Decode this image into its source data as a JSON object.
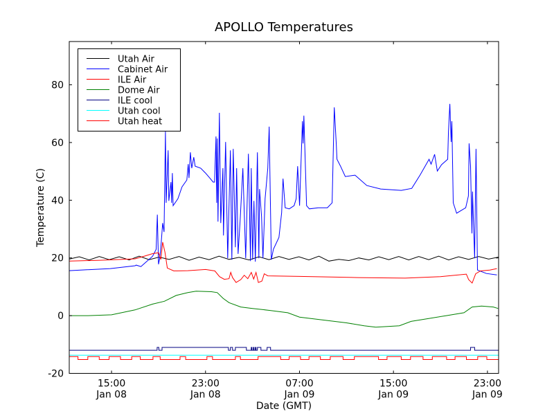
{
  "chart_data": {
    "type": "line",
    "title": "APOLLO Temperatures",
    "xlabel": "Date (GMT)",
    "ylabel": "Temperature (C)",
    "x_unit": "hours since Jan 08 00:00 GMT",
    "xlim": [
      11.4,
      47.95
    ],
    "ylim": [
      -20,
      95
    ],
    "grid": false,
    "legend_position": "top-left",
    "yticks": [
      -20,
      0,
      20,
      40,
      60,
      80
    ],
    "ytick_labels": [
      "-20",
      "0",
      "20",
      "40",
      "60",
      "80"
    ],
    "xticks": [
      {
        "value": 15,
        "time": "15:00",
        "date": "Jan 08"
      },
      {
        "value": 23,
        "time": "23:00",
        "date": "Jan 08"
      },
      {
        "value": 31,
        "time": "07:00",
        "date": "Jan 09"
      },
      {
        "value": 39,
        "time": "15:00",
        "date": "Jan 09"
      },
      {
        "value": 47,
        "time": "23:00",
        "date": "Jan 09"
      }
    ],
    "series": [
      {
        "name": "Utah Air",
        "color": "#000000",
        "x_start": 11.4,
        "x_step": 0.85,
        "values": [
          19.6,
          20.4,
          19.3,
          20.5,
          19.4,
          20.4,
          19.3,
          20.6,
          19.4,
          20.3,
          19.5,
          20.5,
          19.2,
          20.3,
          19.4,
          20.6,
          19.5,
          20.2,
          19.3,
          20.4,
          19.4,
          20.5,
          19.5,
          20.4,
          19.3,
          20.6,
          18.9,
          19.5,
          19.1,
          20.0,
          19.3,
          20.4,
          19.4,
          20.5,
          19.3,
          20.5,
          19.4,
          20.6,
          19.3,
          20.4,
          19.5,
          20.5,
          19.6,
          20.3
        ]
      },
      {
        "name": "Cabinet Air",
        "color": "#0000ff",
        "points": [
          [
            11.4,
            15.6
          ],
          [
            14.9,
            16.3
          ],
          [
            17.0,
            17.3
          ],
          [
            17.1,
            17.5
          ],
          [
            17.5,
            17.0
          ],
          [
            18.5,
            20.6
          ],
          [
            18.8,
            23.0
          ],
          [
            18.9,
            35.0
          ],
          [
            19.0,
            17.8
          ],
          [
            19.1,
            19.9
          ],
          [
            19.2,
            23.7
          ],
          [
            19.35,
            32.1
          ],
          [
            19.47,
            29.0
          ],
          [
            19.59,
            63.8
          ],
          [
            19.65,
            39.1
          ],
          [
            19.82,
            57.3
          ],
          [
            19.88,
            39.8
          ],
          [
            20.06,
            46.3
          ],
          [
            20.12,
            39.1
          ],
          [
            20.18,
            49.4
          ],
          [
            20.24,
            38.1
          ],
          [
            20.65,
            40.5
          ],
          [
            21.0,
            44.6
          ],
          [
            21.41,
            47.0
          ],
          [
            21.53,
            52.5
          ],
          [
            21.59,
            47.7
          ],
          [
            21.71,
            56.6
          ],
          [
            21.83,
            51.1
          ],
          [
            22.0,
            54.9
          ],
          [
            22.12,
            51.8
          ],
          [
            22.59,
            51.1
          ],
          [
            23.0,
            49.4
          ],
          [
            23.36,
            47.7
          ],
          [
            23.65,
            46.3
          ],
          [
            23.77,
            46.3
          ],
          [
            23.89,
            62.1
          ],
          [
            23.95,
            39.1
          ],
          [
            24.0,
            61.4
          ],
          [
            24.06,
            32.6
          ],
          [
            24.18,
            70.3
          ],
          [
            24.3,
            32.1
          ],
          [
            24.48,
            51.1
          ],
          [
            24.53,
            27.8
          ],
          [
            24.71,
            60.2
          ],
          [
            24.89,
            19.9
          ],
          [
            25.12,
            57.3
          ],
          [
            25.24,
            19.4
          ],
          [
            25.36,
            57.8
          ],
          [
            25.54,
            23.7
          ],
          [
            25.65,
            51.1
          ],
          [
            25.77,
            21.4
          ],
          [
            25.95,
            33.1
          ],
          [
            26.18,
            51.1
          ],
          [
            26.42,
            19.9
          ],
          [
            26.65,
            56.1
          ],
          [
            26.83,
            18.9
          ],
          [
            26.89,
            51.1
          ],
          [
            27.01,
            19.4
          ],
          [
            27.12,
            39.8
          ],
          [
            27.24,
            18.7
          ],
          [
            27.42,
            56.6
          ],
          [
            27.54,
            19.9
          ],
          [
            27.6,
            43.9
          ],
          [
            27.77,
            34.3
          ],
          [
            27.89,
            19.9
          ],
          [
            28.07,
            40.5
          ],
          [
            28.3,
            51.1
          ],
          [
            28.42,
            65.5
          ],
          [
            28.6,
            19.4
          ],
          [
            28.78,
            23.0
          ],
          [
            29.25,
            27.1
          ],
          [
            29.48,
            35.7
          ],
          [
            29.6,
            47.5
          ],
          [
            29.78,
            37.4
          ],
          [
            30.13,
            37.0
          ],
          [
            30.54,
            38.1
          ],
          [
            30.72,
            40.5
          ],
          [
            30.84,
            51.8
          ],
          [
            31.01,
            38.1
          ],
          [
            31.25,
            67.4
          ],
          [
            31.31,
            59.7
          ],
          [
            31.37,
            69.3
          ],
          [
            31.6,
            38.1
          ],
          [
            31.84,
            37.0
          ],
          [
            32.6,
            37.4
          ],
          [
            33.37,
            37.4
          ],
          [
            33.78,
            39.1
          ],
          [
            33.96,
            72.2
          ],
          [
            34.14,
            59.0
          ],
          [
            34.19,
            54.2
          ],
          [
            34.49,
            51.8
          ],
          [
            34.9,
            48.2
          ],
          [
            35.73,
            48.7
          ],
          [
            36.73,
            45.1
          ],
          [
            37.91,
            43.9
          ],
          [
            39.67,
            43.4
          ],
          [
            40.56,
            44.1
          ],
          [
            41.26,
            48.7
          ],
          [
            42.03,
            54.2
          ],
          [
            42.2,
            52.5
          ],
          [
            42.5,
            55.9
          ],
          [
            42.73,
            50.1
          ],
          [
            43.09,
            52.3
          ],
          [
            43.62,
            54.2
          ],
          [
            43.68,
            63.8
          ],
          [
            43.8,
            73.4
          ],
          [
            43.91,
            60.2
          ],
          [
            43.97,
            67.4
          ],
          [
            44.09,
            39.1
          ],
          [
            44.38,
            35.5
          ],
          [
            45.15,
            37.4
          ],
          [
            45.38,
            41.5
          ],
          [
            45.44,
            59.7
          ],
          [
            45.56,
            51.8
          ],
          [
            45.68,
            28.5
          ],
          [
            45.73,
            43.0
          ],
          [
            45.91,
            19.9
          ],
          [
            46.03,
            57.8
          ],
          [
            46.15,
            15.8
          ],
          [
            46.91,
            14.6
          ],
          [
            47.8,
            14.1
          ]
        ]
      },
      {
        "name": "ILE Air",
        "color": "#ff0000",
        "points": [
          [
            11.4,
            18.9
          ],
          [
            14,
            19.2
          ],
          [
            17,
            19.7
          ],
          [
            17.7,
            20.5
          ],
          [
            18.5,
            21.5
          ],
          [
            19.0,
            21.8
          ],
          [
            19.2,
            19.5
          ],
          [
            19.35,
            25.5
          ],
          [
            19.55,
            22
          ],
          [
            19.75,
            16.5
          ],
          [
            20.3,
            15.5
          ],
          [
            21.5,
            15.6
          ],
          [
            23,
            16.0
          ],
          [
            23.8,
            15.5
          ],
          [
            24.2,
            13.5
          ],
          [
            24.6,
            12.6
          ],
          [
            25.0,
            12.8
          ],
          [
            25.15,
            15
          ],
          [
            25.3,
            13.2
          ],
          [
            25.6,
            11.5
          ],
          [
            26.0,
            12.5
          ],
          [
            26.3,
            14
          ],
          [
            26.6,
            12.8
          ],
          [
            26.9,
            15
          ],
          [
            27.1,
            12.7
          ],
          [
            27.3,
            15
          ],
          [
            27.5,
            11.5
          ],
          [
            27.8,
            12
          ],
          [
            28.0,
            14.5
          ],
          [
            28.3,
            13.8
          ],
          [
            31,
            13.6
          ],
          [
            36,
            13.2
          ],
          [
            40,
            13.0
          ],
          [
            43,
            13.5
          ],
          [
            45.2,
            14.4
          ],
          [
            45.4,
            12.5
          ],
          [
            45.7,
            11.3
          ],
          [
            46.0,
            14.5
          ],
          [
            46.4,
            15.5
          ],
          [
            47.2,
            15.8
          ],
          [
            47.8,
            16.3
          ]
        ]
      },
      {
        "name": "Dome Air",
        "color": "#008000",
        "points": [
          [
            11.4,
            0
          ],
          [
            13,
            0
          ],
          [
            15,
            0.3
          ],
          [
            17,
            2
          ],
          [
            18.5,
            4
          ],
          [
            19.5,
            5
          ],
          [
            20.5,
            7
          ],
          [
            21.5,
            8
          ],
          [
            22.2,
            8.5
          ],
          [
            23.5,
            8.3
          ],
          [
            24,
            8
          ],
          [
            24.5,
            6
          ],
          [
            25,
            4.5
          ],
          [
            26,
            3
          ],
          [
            27,
            2.5
          ],
          [
            28.5,
            1.8
          ],
          [
            30,
            1
          ],
          [
            31,
            -0.5
          ],
          [
            33,
            -1.5
          ],
          [
            35,
            -2.5
          ],
          [
            36.5,
            -3.5
          ],
          [
            37.5,
            -4
          ],
          [
            39.5,
            -3.5
          ],
          [
            40.5,
            -2
          ],
          [
            42,
            -1
          ],
          [
            43.5,
            0
          ],
          [
            45,
            1
          ],
          [
            45.7,
            3
          ],
          [
            46.5,
            3.3
          ],
          [
            47.5,
            3
          ],
          [
            47.9,
            2.5
          ]
        ]
      },
      {
        "name": "ILE cool",
        "color": "#000080",
        "low": -12,
        "high": -11,
        "high_intervals": [
          [
            18.88,
            19.03
          ],
          [
            19.3,
            24.95
          ],
          [
            25.12,
            25.3
          ],
          [
            25.54,
            26.48
          ],
          [
            26.89,
            26.95
          ],
          [
            27.07,
            27.13
          ],
          [
            27.24,
            27.3
          ],
          [
            27.42,
            27.72
          ],
          [
            28.24,
            28.54
          ],
          [
            45.56,
            45.91
          ]
        ]
      },
      {
        "name": "Utah cool",
        "color": "#00ffff",
        "low": -13.7,
        "high": -13.7,
        "high_intervals": []
      },
      {
        "name": "Utah heat",
        "color": "#ff0000",
        "low": -15.2,
        "high": -14.2,
        "high_intervals": [
          [
            11.4,
            12.14
          ],
          [
            12.98,
            13.95
          ],
          [
            14.79,
            15.76
          ],
          [
            16.72,
            17.45
          ],
          [
            18.53,
            19.14
          ],
          [
            20.83,
            21.31
          ],
          [
            23.12,
            23.6
          ],
          [
            25.54,
            25.97
          ],
          [
            27.47,
            29.4
          ],
          [
            30.12,
            31.09
          ],
          [
            31.81,
            32.78
          ],
          [
            33.62,
            34.71
          ],
          [
            35.67,
            37.73
          ],
          [
            38.45,
            39.66
          ],
          [
            40.45,
            41.52
          ],
          [
            42.31,
            43.52
          ],
          [
            44.24,
            45.21
          ],
          [
            46.17,
            46.95
          ]
        ]
      }
    ]
  }
}
